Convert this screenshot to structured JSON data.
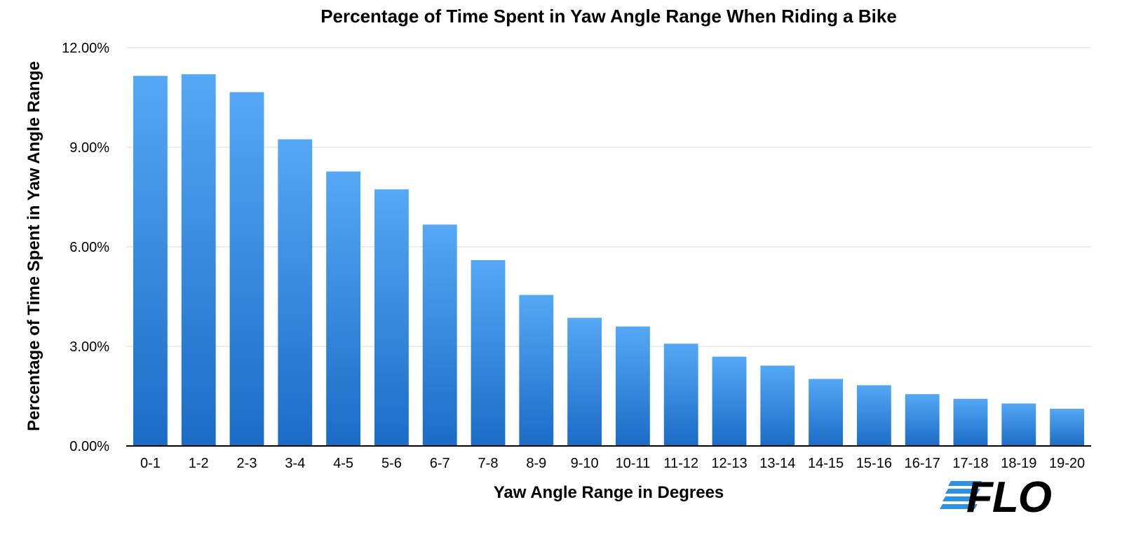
{
  "chart_data": {
    "type": "bar",
    "title": "Percentage of Time Spent in Yaw Angle Range When Riding a Bike",
    "xlabel": "Yaw Angle Range in Degrees",
    "ylabel": "Percentage of Time Spent in Yaw Angle Range",
    "categories": [
      "0-1",
      "1-2",
      "2-3",
      "3-4",
      "4-5",
      "5-6",
      "6-7",
      "7-8",
      "8-9",
      "9-10",
      "10-11",
      "11-12",
      "12-13",
      "13-14",
      "14-15",
      "15-16",
      "16-17",
      "17-18",
      "18-19",
      "19-20"
    ],
    "values": [
      11.15,
      11.2,
      10.66,
      9.24,
      8.27,
      7.73,
      6.67,
      5.6,
      4.55,
      3.86,
      3.6,
      3.08,
      2.69,
      2.42,
      2.02,
      1.83,
      1.56,
      1.42,
      1.28,
      1.12
    ],
    "ylim": [
      0,
      12
    ],
    "yticks": [
      0,
      3,
      6,
      9,
      12
    ],
    "ytick_labels": [
      "0.00%",
      "3.00%",
      "6.00%",
      "9.00%",
      "12.00%"
    ],
    "grid": true,
    "bar_color_top": "#55a8f5",
    "bar_color_bottom": "#1a6cc6"
  },
  "logo": {
    "text": "FLO",
    "stripe_color": "#2e8fe6",
    "text_color": "#000000"
  }
}
